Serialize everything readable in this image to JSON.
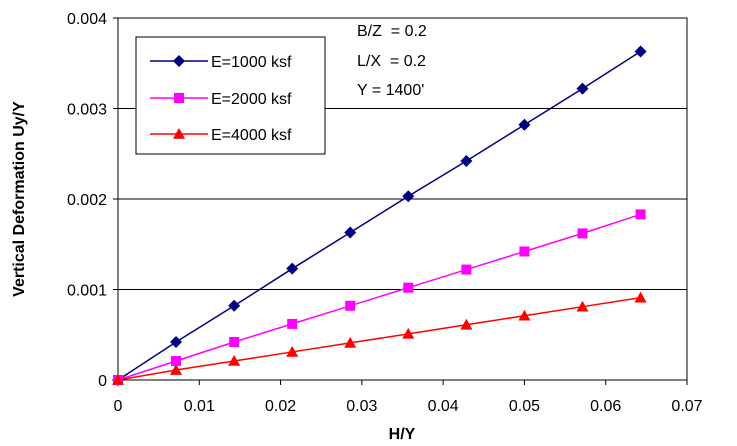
{
  "chart_data": {
    "type": "line",
    "title": "",
    "xlabel": "H/Y",
    "ylabel": "Vertical Deformation Uy/Y",
    "xlim": [
      0,
      0.07
    ],
    "ylim": [
      0,
      0.004
    ],
    "x_ticks": [
      "0",
      "0.01",
      "0.02",
      "0.03",
      "0.04",
      "0.05",
      "0.06",
      "0.07"
    ],
    "y_ticks": [
      "0",
      "0.001",
      "0.002",
      "0.003",
      "0.004"
    ],
    "grid": "horizontal",
    "legend_position": "top-left",
    "annotations": [
      "B/Z  = 0.2",
      "L/X  = 0.2",
      "Y = 1400'"
    ],
    "x": [
      0,
      0.00714,
      0.01429,
      0.02143,
      0.02857,
      0.03571,
      0.04286,
      0.05,
      0.05714,
      0.06429
    ],
    "series": [
      {
        "name": "E=1000 ksf",
        "color": "#000080",
        "marker": "diamond",
        "values": [
          0,
          0.00042,
          0.00082,
          0.00123,
          0.00163,
          0.00203,
          0.00242,
          0.00282,
          0.00322,
          0.00363
        ]
      },
      {
        "name": "E=2000 ksf",
        "color": "#FF00FF",
        "marker": "square",
        "values": [
          0,
          0.00021,
          0.00042,
          0.00062,
          0.00082,
          0.00102,
          0.00122,
          0.00142,
          0.00162,
          0.00183
        ]
      },
      {
        "name": "E=4000 ksf",
        "color": "#FF0000",
        "marker": "triangle",
        "values": [
          0,
          0.00011,
          0.00021,
          0.00031,
          0.00041,
          0.00051,
          0.00061,
          0.00071,
          0.00081,
          0.00091
        ]
      }
    ]
  }
}
